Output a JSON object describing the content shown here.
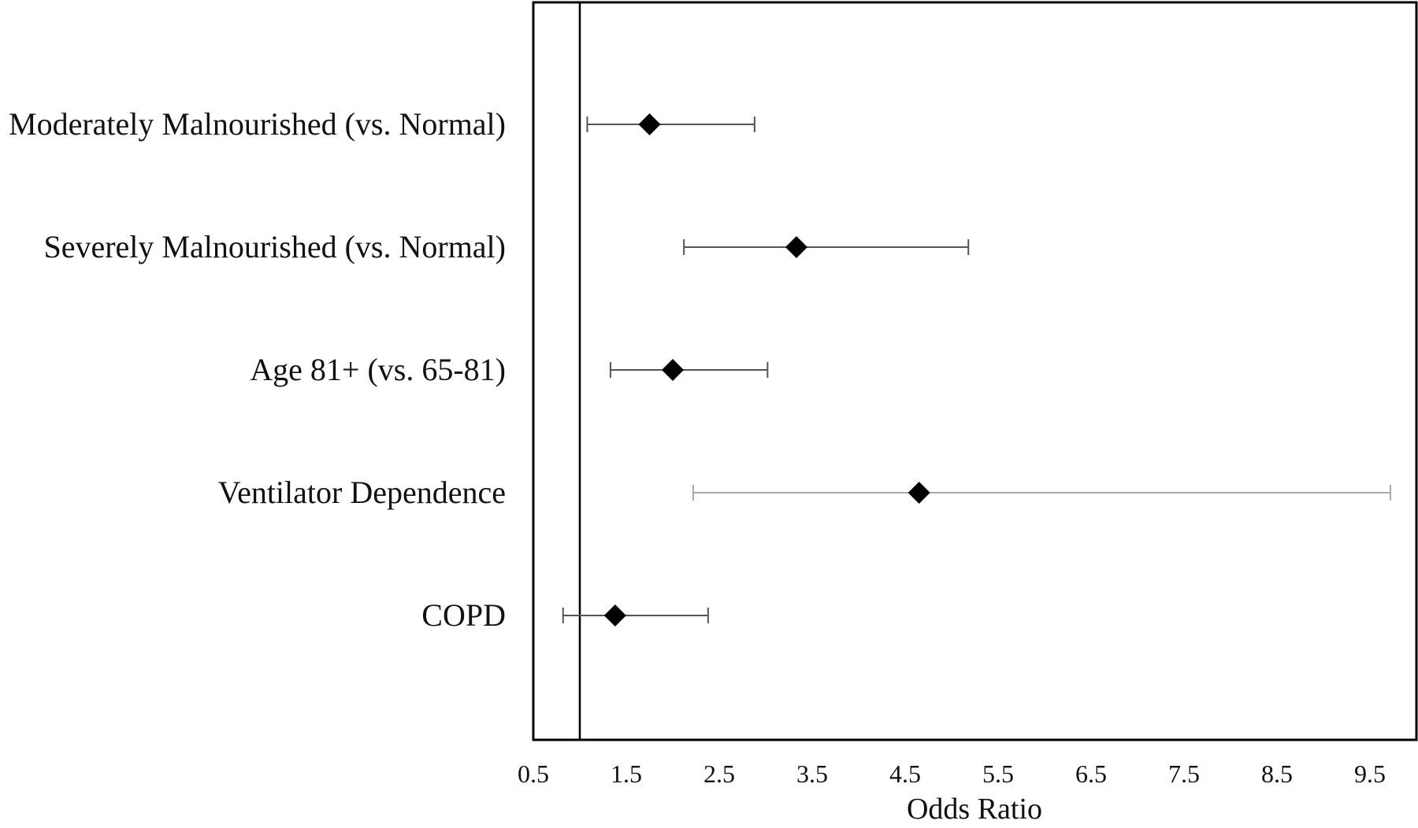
{
  "chart_data": {
    "type": "forest",
    "xlabel": "Odds Ratio",
    "ylabel": "",
    "title": "",
    "xlim": [
      0.5,
      10.0
    ],
    "x_ticks": [
      "0.5",
      "1.5",
      "2.5",
      "3.5",
      "4.5",
      "5.5",
      "6.5",
      "7.5",
      "8.5",
      "9.5"
    ],
    "x_tick_values": [
      0.5,
      1.5,
      2.5,
      3.5,
      4.5,
      5.5,
      6.5,
      7.5,
      8.5,
      9.5
    ],
    "reference_line": 1.0,
    "grid": false,
    "marker": "diamond",
    "colors": {
      "marker": "#000000",
      "error_bar": "#555555",
      "error_bar_light": "#aaaaaa",
      "frame": "#000000"
    },
    "rows": [
      {
        "label": "Moderately Malnourished (vs. Normal)",
        "or": 1.75,
        "lower": 1.08,
        "upper": 2.88,
        "bar_style": "dark"
      },
      {
        "label": "Severely Malnourished (vs. Normal)",
        "or": 3.33,
        "lower": 2.12,
        "upper": 5.18,
        "bar_style": "dark"
      },
      {
        "label": "Age 81+ (vs. 65-81)",
        "or": 2.0,
        "lower": 1.33,
        "upper": 3.02,
        "bar_style": "dark"
      },
      {
        "label": "Ventilator Dependence",
        "or": 4.65,
        "lower": 2.22,
        "upper": 9.72,
        "bar_style": "light"
      },
      {
        "label": "COPD",
        "or": 1.38,
        "lower": 0.82,
        "upper": 2.38,
        "bar_style": "dark"
      }
    ]
  }
}
